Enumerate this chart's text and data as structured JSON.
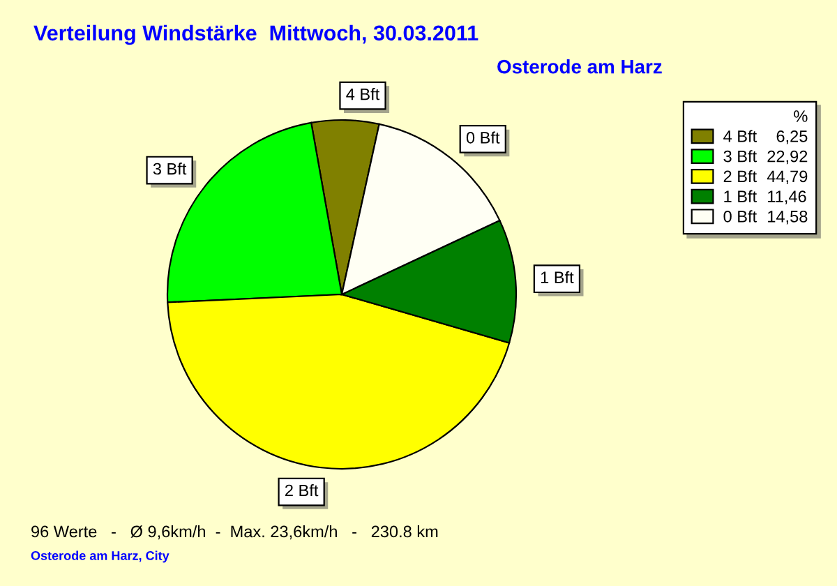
{
  "chart_data": {
    "type": "pie",
    "title": "Verteilung Windstärke  Mittwoch, 30.03.2011",
    "subtitle": "Osterode am Harz",
    "categories": [
      "4 Bft",
      "3 Bft",
      "2 Bft",
      "1 Bft",
      "0 Bft"
    ],
    "values": [
      6.25,
      22.92,
      44.79,
      11.46,
      14.58
    ],
    "value_labels": [
      "6,25",
      "22,92",
      "44,79",
      "11,46",
      "14,58"
    ],
    "colors": [
      "#808000",
      "#00ff00",
      "#ffff00",
      "#008000",
      "#fffff4"
    ],
    "legend": "top right",
    "legend_title": "%",
    "annotations": [
      "96 Werte   -   Ø 9,6km/h  -  Max. 23,6km/h   -   230.8 km",
      "Osterode am Harz, City"
    ]
  }
}
